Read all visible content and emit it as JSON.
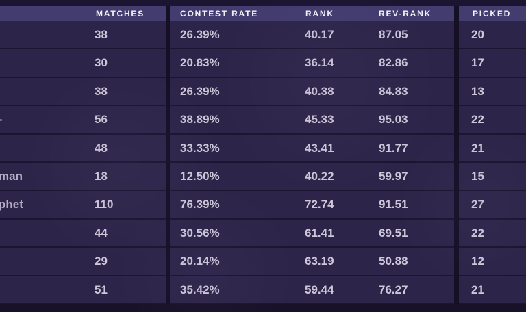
{
  "theme": {
    "page_background": "#1b1532",
    "header_background": "#433c6e",
    "row_background": "#2d2549",
    "separator": "#1b1531",
    "divider": "#151026",
    "header_text": "#f3f1f8",
    "cell_text": "#cdc7d9"
  },
  "table": {
    "columns": [
      {
        "key": "matches",
        "label": "MATCHES"
      },
      {
        "key": "contest_rate",
        "label": "CONTEST RATE"
      },
      {
        "key": "rank",
        "label": "RANK"
      },
      {
        "key": "rev_rank",
        "label": "REV-RANK"
      },
      {
        "key": "picked",
        "label": "PICKED"
      }
    ],
    "rows": [
      {
        "name_fragment": "",
        "matches": "38",
        "contest_rate": "26.39%",
        "rank": "40.17",
        "rev_rank": "87.05",
        "picked": "20"
      },
      {
        "name_fragment": "",
        "matches": "30",
        "contest_rate": "20.83%",
        "rank": "36.14",
        "rev_rank": "82.86",
        "picked": "17"
      },
      {
        "name_fragment": "",
        "matches": "38",
        "contest_rate": "26.39%",
        "rank": "40.38",
        "rev_rank": "84.83",
        "picked": "13"
      },
      {
        "name_fragment": "-",
        "matches": "56",
        "contest_rate": "38.89%",
        "rank": "45.33",
        "rev_rank": "95.03",
        "picked": "22"
      },
      {
        "name_fragment": "",
        "matches": "48",
        "contest_rate": "33.33%",
        "rank": "43.41",
        "rev_rank": "91.77",
        "picked": "21"
      },
      {
        "name_fragment": "man",
        "matches": "18",
        "contest_rate": "12.50%",
        "rank": "40.22",
        "rev_rank": "59.97",
        "picked": "15"
      },
      {
        "name_fragment": "phet",
        "matches": "110",
        "contest_rate": "76.39%",
        "rank": "72.74",
        "rev_rank": "91.51",
        "picked": "27"
      },
      {
        "name_fragment": "",
        "matches": "44",
        "contest_rate": "30.56%",
        "rank": "61.41",
        "rev_rank": "69.51",
        "picked": "22"
      },
      {
        "name_fragment": "",
        "matches": "29",
        "contest_rate": "20.14%",
        "rank": "63.19",
        "rev_rank": "50.88",
        "picked": "12"
      },
      {
        "name_fragment": "",
        "matches": "51",
        "contest_rate": "35.42%",
        "rank": "59.44",
        "rev_rank": "76.27",
        "picked": "21"
      }
    ]
  }
}
